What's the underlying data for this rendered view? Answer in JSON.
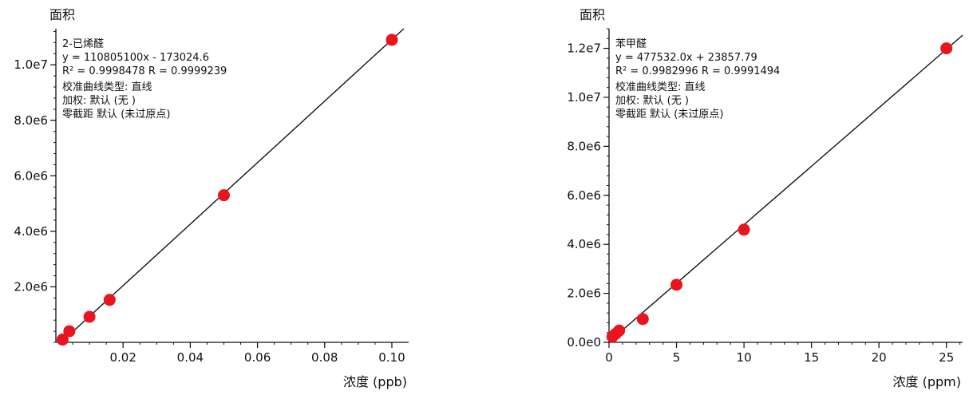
{
  "chart_data": [
    {
      "type": "scatter",
      "ylabel": "面积",
      "xlabel": "浓度 (ppb)",
      "xlim": [
        0,
        0.105
      ],
      "ylim": [
        0,
        11300000
      ],
      "xticks": [
        0.02,
        0.04,
        0.06,
        0.08,
        0.1
      ],
      "xtick_labels": [
        "0.02",
        "0.04",
        "0.06",
        "0.08",
        "0.10"
      ],
      "yticks": [
        2000000,
        4000000,
        6000000,
        8000000,
        10000000
      ],
      "ytick_labels": [
        "2.0e6",
        "4.0e6",
        "6.0e6",
        "8.0e6",
        "1.0e7"
      ],
      "series": [
        {
          "x": [
            0.002,
            0.004,
            0.01,
            0.016,
            0.05,
            0.1
          ],
          "y": [
            100000,
            400000,
            920000,
            1530000,
            5300000,
            10900000
          ],
          "color": "#e8141e"
        }
      ],
      "fit_line": {
        "slope": 110805100,
        "intercept": -173024.6
      },
      "annotations": [
        "2-已烯醛",
        "y = 110805100x - 173024.6",
        "R² = 0.9998478    R = 0.9999239",
        "校准曲线类型: 直线",
        "加权: 默认 (无 )",
        "零截距 默认 (未过原点)"
      ]
    },
    {
      "type": "scatter",
      "ylabel": "面积",
      "xlabel": "浓度 (ppm)",
      "xlim": [
        0,
        26.2
      ],
      "ylim": [
        0,
        12800000
      ],
      "xticks": [
        0,
        5,
        10,
        15,
        20,
        25
      ],
      "xtick_labels": [
        "0",
        "5",
        "10",
        "15",
        "20",
        "25"
      ],
      "yticks": [
        0,
        2000000,
        4000000,
        6000000,
        8000000,
        10000000,
        12000000
      ],
      "ytick_labels": [
        "0.0e0",
        "2.0e6",
        "4.0e6",
        "6.0e6",
        "8.0e6",
        "1.0e7",
        "1.2e7"
      ],
      "series": [
        {
          "x": [
            0.25,
            0.5,
            0.75,
            2.5,
            5,
            10,
            25
          ],
          "y": [
            230000,
            350000,
            480000,
            950000,
            2350000,
            4600000,
            12000000
          ],
          "color": "#e8141e"
        }
      ],
      "fit_line": {
        "slope": 477532.0,
        "intercept": 23857.79
      },
      "annotations": [
        "苯甲醛",
        "y = 477532.0x + 23857.79",
        "R² = 0.9982996    R = 0.9991494",
        "校准曲线类型: 直线",
        "加权: 默认 (无 )",
        "零截距 默认 (未过原点)"
      ]
    }
  ]
}
